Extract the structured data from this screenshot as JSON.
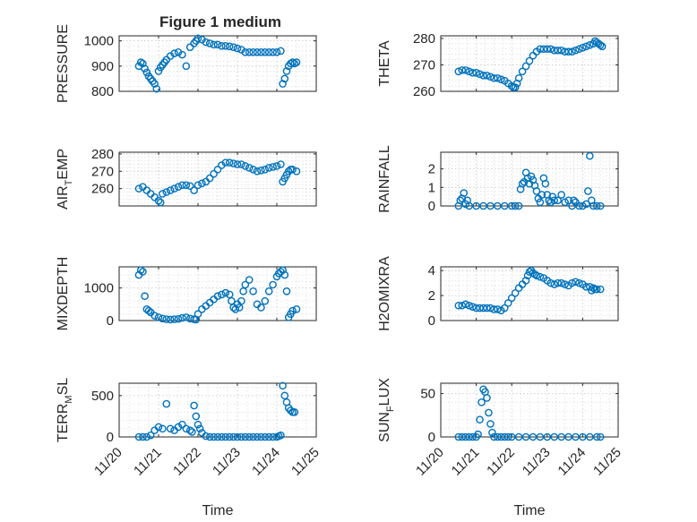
{
  "figure": {
    "title": "Figure 1 medium"
  },
  "chart_data": [
    {
      "type": "scatter",
      "ylabel": "PRESSURE",
      "xlabel": "",
      "xlim": [
        20,
        25
      ],
      "ylim": [
        800,
        1020
      ],
      "yticks": [
        800,
        900,
        1000
      ],
      "yticklabels": [
        "800",
        "900",
        "1000"
      ],
      "xticklabels": [],
      "x": [
        20.5,
        20.55,
        20.6,
        20.65,
        20.7,
        20.75,
        20.8,
        20.85,
        20.9,
        20.95,
        21.0,
        21.05,
        21.1,
        21.15,
        21.2,
        21.3,
        21.4,
        21.5,
        21.6,
        21.7,
        21.8,
        21.9,
        21.95,
        22.0,
        22.1,
        22.2,
        22.3,
        22.4,
        22.5,
        22.6,
        22.7,
        22.8,
        22.9,
        23.0,
        23.1,
        23.2,
        23.3,
        23.4,
        23.5,
        23.6,
        23.7,
        23.8,
        23.9,
        24.0,
        24.1,
        24.15,
        24.2,
        24.25,
        24.3,
        24.35,
        24.4,
        24.45,
        24.5
      ],
      "series": [
        {
          "values": [
            900,
            915,
            910,
            890,
            875,
            860,
            850,
            840,
            830,
            810,
            880,
            895,
            905,
            915,
            925,
            940,
            950,
            955,
            945,
            900,
            975,
            990,
            1000,
            1010,
            1005,
            995,
            990,
            985,
            985,
            980,
            980,
            978,
            975,
            970,
            965,
            955,
            955,
            955,
            955,
            955,
            955,
            955,
            955,
            955,
            960,
            830,
            850,
            880,
            900,
            910,
            915,
            910,
            915
          ]
        }
      ]
    },
    {
      "type": "scatter",
      "ylabel": "THETA",
      "xlabel": "",
      "xlim": [
        20,
        25
      ],
      "ylim": [
        260,
        281
      ],
      "yticks": [
        260,
        270,
        280
      ],
      "yticklabels": [
        "260",
        "270",
        "280"
      ],
      "xticklabels": [],
      "x": [
        20.5,
        20.6,
        20.7,
        20.8,
        20.9,
        21.0,
        21.1,
        21.2,
        21.3,
        21.4,
        21.5,
        21.6,
        21.7,
        21.8,
        21.9,
        22.0,
        22.05,
        22.1,
        22.15,
        22.2,
        22.3,
        22.4,
        22.5,
        22.6,
        22.7,
        22.8,
        22.9,
        23.0,
        23.1,
        23.2,
        23.3,
        23.4,
        23.5,
        23.6,
        23.7,
        23.8,
        23.9,
        24.0,
        24.1,
        24.2,
        24.3,
        24.35,
        24.4,
        24.45,
        24.5,
        24.55
      ],
      "series": [
        {
          "values": [
            267.5,
            268,
            268,
            267.5,
            267,
            267,
            266.5,
            266,
            266,
            265.5,
            265,
            265,
            264.5,
            264,
            263,
            262,
            261.5,
            261.5,
            263,
            265,
            267.5,
            269.5,
            271.5,
            273.5,
            275,
            276,
            276,
            276,
            276,
            275.5,
            275.5,
            275.5,
            275,
            275,
            275,
            275.5,
            276,
            276.5,
            277,
            277.5,
            278,
            279,
            278.5,
            278,
            277.5,
            277
          ]
        }
      ]
    },
    {
      "type": "scatter",
      "ylabel": "AIR_TEMP",
      "xlabel": "",
      "xlim": [
        20,
        25
      ],
      "ylim": [
        250,
        281
      ],
      "yticks": [
        260,
        270,
        280
      ],
      "yticklabels": [
        "260",
        "270",
        "280"
      ],
      "xticklabels": [],
      "x": [
        20.5,
        20.6,
        20.7,
        20.8,
        20.9,
        21.0,
        21.05,
        21.1,
        21.2,
        21.3,
        21.4,
        21.5,
        21.6,
        21.7,
        21.8,
        21.9,
        22.0,
        22.1,
        22.2,
        22.3,
        22.4,
        22.5,
        22.6,
        22.7,
        22.8,
        22.9,
        23.0,
        23.1,
        23.2,
        23.3,
        23.4,
        23.5,
        23.6,
        23.7,
        23.8,
        23.9,
        24.0,
        24.1,
        24.15,
        24.2,
        24.25,
        24.3,
        24.35,
        24.4,
        24.5
      ],
      "series": [
        {
          "values": [
            260,
            261,
            259,
            257,
            255,
            253,
            252,
            257,
            258,
            259,
            260,
            261,
            262,
            262,
            261.5,
            259,
            262,
            263,
            264,
            266,
            268.5,
            271,
            273.5,
            275,
            275,
            274.5,
            274,
            274,
            273,
            272,
            271,
            270,
            270.5,
            271,
            272,
            272.5,
            273,
            274,
            264,
            266,
            268,
            270,
            271,
            271,
            270
          ]
        }
      ]
    },
    {
      "type": "scatter",
      "ylabel": "RAINFALL",
      "xlabel": "",
      "xlim": [
        20,
        25
      ],
      "ylim": [
        0,
        2.9
      ],
      "yticks": [
        0,
        1,
        2
      ],
      "yticklabels": [
        "0",
        "1",
        "2"
      ],
      "xticklabels": [],
      "x": [
        20.5,
        20.55,
        20.6,
        20.65,
        20.7,
        20.75,
        20.8,
        21.0,
        21.2,
        21.4,
        21.6,
        21.8,
        22.0,
        22.1,
        22.2,
        22.25,
        22.3,
        22.35,
        22.4,
        22.45,
        22.5,
        22.55,
        22.6,
        22.65,
        22.7,
        22.75,
        22.8,
        22.85,
        22.9,
        22.95,
        23.0,
        23.05,
        23.1,
        23.15,
        23.2,
        23.3,
        23.4,
        23.5,
        23.6,
        23.7,
        23.75,
        23.8,
        23.9,
        24.0,
        24.1,
        24.15,
        24.2,
        24.25,
        24.3,
        24.4,
        24.5
      ],
      "series": [
        {
          "values": [
            0,
            0.3,
            0.4,
            0.7,
            0.1,
            0.3,
            0,
            0,
            0,
            0,
            0,
            0,
            0,
            0,
            0,
            0.9,
            1.2,
            1.3,
            1.8,
            1.5,
            1.2,
            1.6,
            1.4,
            1.1,
            0.8,
            0.4,
            0.2,
            0.6,
            1.5,
            1.2,
            0.6,
            0.3,
            0.2,
            0.5,
            0.3,
            0.3,
            0.6,
            0.2,
            0.3,
            0,
            0.3,
            0.2,
            0,
            0,
            0.1,
            0.8,
            2.7,
            0.3,
            0,
            0,
            0
          ]
        }
      ]
    },
    {
      "type": "scatter",
      "ylabel": "MIXDEPTH",
      "xlabel": "",
      "xlim": [
        20,
        25
      ],
      "ylim": [
        0,
        1650
      ],
      "yticks": [
        0,
        1000
      ],
      "yticklabels": [
        "0",
        "1000"
      ],
      "xticklabels": [],
      "x": [
        20.5,
        20.55,
        20.6,
        20.65,
        20.7,
        20.75,
        20.8,
        20.9,
        21.0,
        21.1,
        21.2,
        21.3,
        21.4,
        21.5,
        21.6,
        21.7,
        21.8,
        21.9,
        21.95,
        22.0,
        22.1,
        22.2,
        22.3,
        22.4,
        22.5,
        22.6,
        22.7,
        22.8,
        22.85,
        22.9,
        22.95,
        23.0,
        23.05,
        23.1,
        23.15,
        23.2,
        23.3,
        23.4,
        23.5,
        23.6,
        23.7,
        23.8,
        23.9,
        24.0,
        24.05,
        24.1,
        24.15,
        24.2,
        24.25,
        24.3,
        24.35,
        24.4,
        24.5
      ],
      "series": [
        {
          "values": [
            1400,
            1550,
            1500,
            750,
            350,
            300,
            250,
            150,
            100,
            60,
            40,
            30,
            40,
            50,
            80,
            100,
            60,
            40,
            30,
            200,
            350,
            450,
            550,
            650,
            750,
            800,
            850,
            800,
            600,
            400,
            350,
            500,
            400,
            600,
            900,
            1100,
            1250,
            900,
            500,
            400,
            600,
            900,
            1100,
            1350,
            1450,
            1500,
            1550,
            1400,
            900,
            100,
            200,
            300,
            350
          ]
        }
      ]
    },
    {
      "type": "scatter",
      "ylabel": "H2OMIXRA",
      "xlabel": "",
      "xlim": [
        20,
        25
      ],
      "ylim": [
        0,
        4.3
      ],
      "yticks": [
        0,
        2,
        4
      ],
      "yticklabels": [
        "0",
        "2",
        "4"
      ],
      "xticklabels": [],
      "x": [
        20.5,
        20.6,
        20.7,
        20.8,
        20.9,
        21.0,
        21.1,
        21.2,
        21.3,
        21.4,
        21.5,
        21.6,
        21.7,
        21.8,
        21.9,
        22.0,
        22.1,
        22.2,
        22.3,
        22.4,
        22.45,
        22.5,
        22.55,
        22.6,
        22.65,
        22.7,
        22.8,
        22.9,
        23.0,
        23.1,
        23.2,
        23.3,
        23.4,
        23.5,
        23.6,
        23.7,
        23.8,
        23.9,
        24.0,
        24.1,
        24.2,
        24.25,
        24.3,
        24.35,
        24.4,
        24.5
      ],
      "series": [
        {
          "values": [
            1.2,
            1.2,
            1.3,
            1.2,
            1.1,
            1.0,
            1.0,
            1.0,
            1.0,
            1.0,
            0.9,
            0.9,
            0.8,
            1.0,
            1.4,
            1.8,
            2.2,
            2.6,
            2.9,
            3.2,
            3.6,
            3.9,
            4.0,
            3.8,
            3.7,
            3.6,
            3.5,
            3.4,
            3.2,
            3.0,
            2.9,
            3.0,
            3.0,
            2.9,
            2.8,
            3.0,
            3.1,
            3.0,
            2.9,
            2.7,
            2.7,
            2.4,
            2.6,
            2.5,
            2.5,
            2.5
          ]
        }
      ]
    },
    {
      "type": "scatter",
      "ylabel": "TERR_MSL",
      "xlabel": "Time",
      "xlim": [
        20,
        25
      ],
      "ylim": [
        0,
        650
      ],
      "yticks": [
        0,
        500
      ],
      "yticklabels": [
        "0",
        "500"
      ],
      "xticklabels": [
        "11/20",
        "11/21",
        "11/22",
        "11/23",
        "11/24",
        "11/25"
      ],
      "x": [
        20.5,
        20.6,
        20.7,
        20.8,
        20.9,
        21.0,
        21.1,
        21.2,
        21.3,
        21.4,
        21.5,
        21.6,
        21.7,
        21.8,
        21.85,
        21.9,
        21.95,
        22.0,
        22.05,
        22.1,
        22.2,
        22.3,
        22.4,
        22.5,
        22.6,
        22.7,
        22.8,
        22.9,
        23.0,
        23.1,
        23.2,
        23.3,
        23.4,
        23.5,
        23.6,
        23.7,
        23.8,
        23.9,
        24.0,
        24.05,
        24.1,
        24.15,
        24.2,
        24.25,
        24.3,
        24.35,
        24.4,
        24.45
      ],
      "series": [
        {
          "values": [
            0,
            0,
            0,
            20,
            80,
            120,
            100,
            400,
            100,
            80,
            120,
            150,
            100,
            80,
            60,
            380,
            250,
            150,
            100,
            50,
            10,
            0,
            0,
            0,
            0,
            0,
            0,
            0,
            0,
            0,
            0,
            0,
            0,
            0,
            0,
            0,
            0,
            0,
            0,
            10,
            20,
            620,
            500,
            420,
            350,
            320,
            300,
            300
          ]
        }
      ]
    },
    {
      "type": "scatter",
      "ylabel": "SUN_FLUX",
      "xlabel": "Time",
      "xlim": [
        20,
        25
      ],
      "ylim": [
        0,
        62
      ],
      "yticks": [
        0,
        50
      ],
      "yticklabels": [
        "0",
        "50"
      ],
      "xticklabels": [
        "11/20",
        "11/21",
        "11/22",
        "11/23",
        "11/24",
        "11/25"
      ],
      "x": [
        20.5,
        20.6,
        20.7,
        20.8,
        20.9,
        21.0,
        21.05,
        21.1,
        21.15,
        21.2,
        21.25,
        21.3,
        21.35,
        21.4,
        21.45,
        21.5,
        21.6,
        21.7,
        21.8,
        21.9,
        22.0,
        22.2,
        22.4,
        22.6,
        22.8,
        23.0,
        23.2,
        23.4,
        23.6,
        23.8,
        24.0,
        24.2,
        24.4,
        24.5
      ],
      "series": [
        {
          "values": [
            0,
            0,
            0,
            0,
            0,
            0,
            3,
            20,
            40,
            55,
            52,
            45,
            28,
            15,
            5,
            0,
            0,
            0,
            0,
            0,
            0,
            0,
            0,
            0,
            0,
            0,
            0,
            0,
            0,
            0,
            0,
            0,
            0,
            0
          ]
        }
      ]
    }
  ]
}
